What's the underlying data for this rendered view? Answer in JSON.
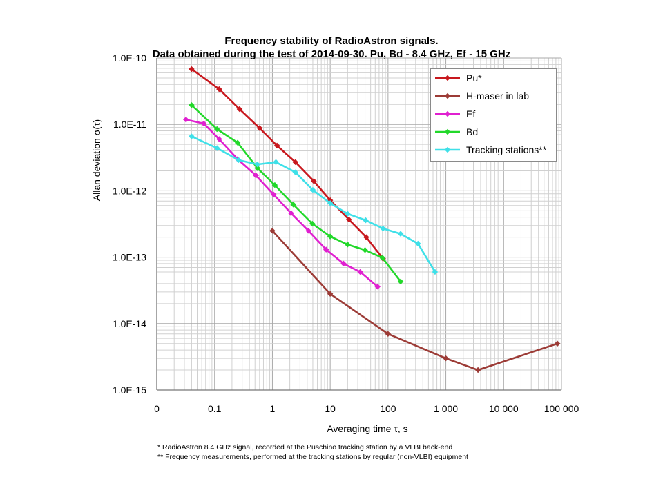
{
  "chart_data": {
    "type": "line",
    "title_lines": [
      "Frequency stability of RadioAstron signals.",
      "Data obtained during the test of 2014-09-30.  Pu, Bd - 8.4 GHz, Ef - 15 GHz"
    ],
    "xlabel": "Averaging time τ, s",
    "ylabel": "Allan deviation σ(τ)",
    "x_scale": "log",
    "y_scale": "log",
    "xlim": [
      0.01,
      100000
    ],
    "ylim": [
      1e-15,
      1e-10
    ],
    "x_tick_labels": [
      "0",
      "0.1",
      "1",
      "10",
      "100",
      "1 000",
      "10 000",
      "100 000"
    ],
    "y_tick_labels": [
      "1.0E-10",
      "1.0E-11",
      "1.0E-12",
      "1.0E-13",
      "1.0E-14",
      "1.0E-15"
    ],
    "grid": true,
    "legend_position": "top-right",
    "series": [
      {
        "name": "Pu*",
        "color": "#c8181e",
        "points": [
          [
            0.04,
            6.8e-11
          ],
          [
            0.12,
            3.4e-11
          ],
          [
            0.27,
            1.7e-11
          ],
          [
            0.6,
            8.8e-12
          ],
          [
            1.2,
            4.8e-12
          ],
          [
            2.5,
            2.7e-12
          ],
          [
            5.2,
            1.4e-12
          ],
          [
            10,
            7.2e-13
          ],
          [
            21,
            3.7e-13
          ],
          [
            42,
            2e-13
          ],
          [
            82,
            9.5e-14
          ]
        ]
      },
      {
        "name": "H-maser in lab",
        "color": "#9c3b36",
        "points": [
          [
            1,
            2.5e-13
          ],
          [
            10,
            2.8e-14
          ],
          [
            100,
            7e-15
          ],
          [
            1000,
            3e-15
          ],
          [
            3600,
            2e-15
          ],
          [
            85000,
            5e-15
          ]
        ]
      },
      {
        "name": "Ef",
        "color": "#e020d0",
        "points": [
          [
            0.032,
            1.18e-11
          ],
          [
            0.065,
            1.03e-11
          ],
          [
            0.12,
            6e-12
          ],
          [
            0.25,
            3e-12
          ],
          [
            0.52,
            1.7e-12
          ],
          [
            1.05,
            8.8e-13
          ],
          [
            2.1,
            4.6e-13
          ],
          [
            4.2,
            2.5e-13
          ],
          [
            8.5,
            1.3e-13
          ],
          [
            17,
            8e-14
          ],
          [
            33,
            6e-14
          ],
          [
            66,
            3.6e-14
          ]
        ]
      },
      {
        "name": "Bd",
        "color": "#22d82a",
        "points": [
          [
            0.04,
            1.95e-11
          ],
          [
            0.11,
            8.5e-12
          ],
          [
            0.25,
            5.3e-12
          ],
          [
            0.55,
            2.2e-12
          ],
          [
            1.1,
            1.22e-12
          ],
          [
            2.3,
            6.2e-13
          ],
          [
            4.9,
            3.2e-13
          ],
          [
            10,
            2.05e-13
          ],
          [
            20,
            1.55e-13
          ],
          [
            40,
            1.28e-13
          ],
          [
            80,
            9.8e-14
          ],
          [
            165,
            4.3e-14
          ]
        ]
      },
      {
        "name": "Tracking stations**",
        "color": "#3fe0e8",
        "points": [
          [
            0.04,
            6.6e-12
          ],
          [
            0.11,
            4.4e-12
          ],
          [
            0.26,
            2.9e-12
          ],
          [
            0.55,
            2.5e-12
          ],
          [
            1.15,
            2.7e-12
          ],
          [
            2.5,
            1.9e-12
          ],
          [
            5,
            1.03e-12
          ],
          [
            10,
            6.5e-13
          ],
          [
            20,
            4.5e-13
          ],
          [
            41,
            3.6e-13
          ],
          [
            82,
            2.7e-13
          ],
          [
            165,
            2.25e-13
          ],
          [
            330,
            1.6e-13
          ],
          [
            650,
            6e-14
          ]
        ]
      }
    ]
  },
  "footnotes": [
    "* RadioAstron 8.4 GHz signal, recorded at the Puschino tracking station by a VLBI back-end",
    "** Frequency measurements, performed  at  the tracking stations by regular (non-VLBI) equipment"
  ]
}
